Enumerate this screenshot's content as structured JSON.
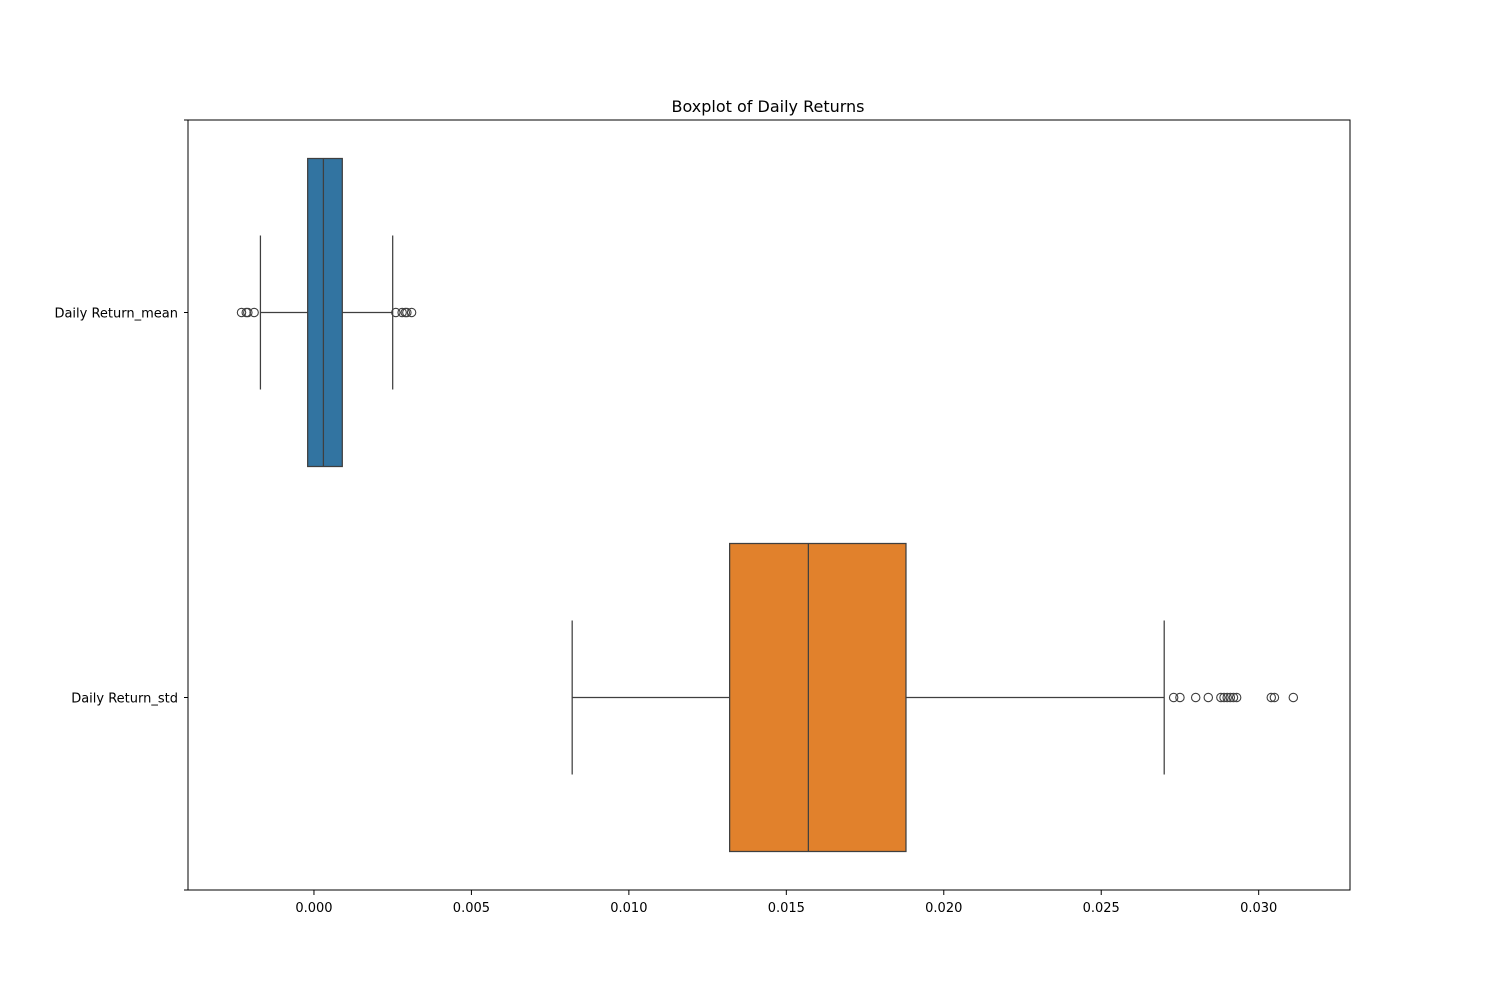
{
  "chart_data": {
    "type": "boxplot",
    "orientation": "horizontal",
    "title": "Boxplot of Daily Returns",
    "xlabel": "",
    "ylabel": "",
    "xlim": [
      -0.004,
      0.0329
    ],
    "xticks": [
      {
        "value": 0.0,
        "label": "0.000"
      },
      {
        "value": 0.005,
        "label": "0.005"
      },
      {
        "value": 0.01,
        "label": "0.010"
      },
      {
        "value": 0.015,
        "label": "0.015"
      },
      {
        "value": 0.02,
        "label": "0.020"
      },
      {
        "value": 0.025,
        "label": "0.025"
      },
      {
        "value": 0.03,
        "label": "0.030"
      }
    ],
    "grid": false,
    "categories": [
      "Daily Return_mean",
      "Daily Return_std"
    ],
    "boxes": [
      {
        "category": "Daily Return_mean",
        "color": "#3274a1",
        "whisker_low": -0.0017,
        "q1": -0.0002,
        "median": 0.0003,
        "q3": 0.0009,
        "whisker_high": 0.0025,
        "outliers": [
          -0.0023,
          -0.00215,
          -0.0021,
          -0.0019,
          0.0026,
          0.0028,
          0.0029,
          0.00295,
          0.0031
        ]
      },
      {
        "category": "Daily Return_std",
        "color": "#e1812c",
        "whisker_low": 0.0082,
        "q1": 0.0132,
        "median": 0.0157,
        "q3": 0.0188,
        "whisker_high": 0.027,
        "outliers": [
          0.0273,
          0.0275,
          0.028,
          0.0284,
          0.0288,
          0.0289,
          0.029,
          0.0291,
          0.0292,
          0.0293,
          0.0304,
          0.0305,
          0.0311
        ]
      }
    ]
  }
}
